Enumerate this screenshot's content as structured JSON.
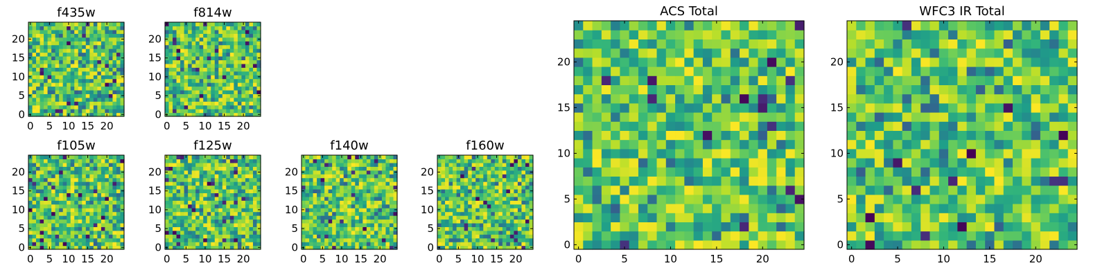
{
  "chart_data": [
    {
      "type": "heatmap",
      "title": "f435w",
      "x_ticks": [
        0,
        5,
        10,
        15,
        20
      ],
      "y_ticks": [
        0,
        5,
        10,
        15,
        20
      ],
      "xlim": [
        -0.5,
        24.5
      ],
      "ylim": [
        -0.5,
        24.5
      ],
      "grid": false,
      "colormap": "viridis"
    },
    {
      "type": "heatmap",
      "title": "f814w",
      "x_ticks": [
        0,
        5,
        10,
        15,
        20
      ],
      "y_ticks": [
        0,
        5,
        10,
        15,
        20
      ],
      "xlim": [
        -0.5,
        24.5
      ],
      "ylim": [
        -0.5,
        24.5
      ],
      "grid": false,
      "colormap": "viridis"
    },
    {
      "type": "heatmap",
      "title": "f105w",
      "x_ticks": [
        0,
        5,
        10,
        15,
        20
      ],
      "y_ticks": [
        0,
        5,
        10,
        15,
        20
      ],
      "xlim": [
        -0.5,
        24.5
      ],
      "ylim": [
        -0.5,
        24.5
      ],
      "grid": false,
      "colormap": "viridis"
    },
    {
      "type": "heatmap",
      "title": "f125w",
      "x_ticks": [
        0,
        5,
        10,
        15,
        20
      ],
      "y_ticks": [
        0,
        5,
        10,
        15,
        20
      ],
      "xlim": [
        -0.5,
        24.5
      ],
      "ylim": [
        -0.5,
        24.5
      ],
      "grid": false,
      "colormap": "viridis"
    },
    {
      "type": "heatmap",
      "title": "f140w",
      "x_ticks": [
        0,
        5,
        10,
        15,
        20
      ],
      "y_ticks": [
        0,
        5,
        10,
        15,
        20
      ],
      "xlim": [
        -0.5,
        24.5
      ],
      "ylim": [
        -0.5,
        24.5
      ],
      "grid": false,
      "colormap": "viridis"
    },
    {
      "type": "heatmap",
      "title": "f160w",
      "x_ticks": [
        0,
        5,
        10,
        15,
        20
      ],
      "y_ticks": [
        0,
        5,
        10,
        15,
        20
      ],
      "xlim": [
        -0.5,
        24.5
      ],
      "ylim": [
        -0.5,
        24.5
      ],
      "grid": false,
      "colormap": "viridis"
    },
    {
      "type": "heatmap",
      "title": "ACS Total",
      "x_ticks": [
        0,
        5,
        10,
        15,
        20
      ],
      "y_ticks": [
        0,
        5,
        10,
        15,
        20
      ],
      "xlim": [
        -0.5,
        24.5
      ],
      "ylim": [
        -0.5,
        24.5
      ],
      "grid": false,
      "colormap": "viridis"
    },
    {
      "type": "heatmap",
      "title": "WFC3 IR Total",
      "x_ticks": [
        0,
        5,
        10,
        15,
        20
      ],
      "y_ticks": [
        0,
        5,
        10,
        15,
        20
      ],
      "xlim": [
        -0.5,
        24.5
      ],
      "ylim": [
        -0.5,
        24.5
      ],
      "grid": false,
      "colormap": "viridis"
    }
  ]
}
